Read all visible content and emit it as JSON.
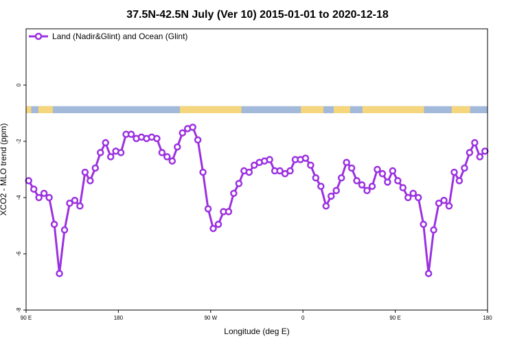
{
  "chart_data": {
    "type": "line",
    "title": "37.5N-42.5N July (Ver 10)   2015-01-01 to 2020-12-18",
    "xlabel": "Longitude (deg E)",
    "ylabel": "XCO2 - MLO trend (ppm)",
    "xlim": [
      90,
      540
    ],
    "ylim": [
      -8,
      2
    ],
    "x_ticks": [
      {
        "value": 90,
        "label": "90 E"
      },
      {
        "value": 180,
        "label": "180"
      },
      {
        "value": 270,
        "label": "90 W"
      },
      {
        "value": 360,
        "label": "0"
      },
      {
        "value": 450,
        "label": "90 E"
      },
      {
        "value": 540,
        "label": "180"
      }
    ],
    "y_ticks": [
      {
        "value": 0,
        "label": "0"
      },
      {
        "value": -2,
        "label": "-2"
      },
      {
        "value": -4,
        "label": "-4"
      },
      {
        "value": -6,
        "label": "-6"
      },
      {
        "value": -8,
        "label": "-8"
      }
    ],
    "grid": false,
    "legend_position": "top-left",
    "land_ocean_strip": {
      "y_range": [
        -1.0,
        -0.75
      ],
      "ocean_color": "#a3b9d9",
      "land_color": "#f6d67c",
      "land_intervals": [
        [
          90,
          95
        ],
        [
          102,
          116
        ],
        [
          240,
          300
        ],
        [
          358,
          380
        ],
        [
          390,
          406
        ],
        [
          418,
          478
        ],
        [
          505,
          523
        ]
      ]
    },
    "series": [
      {
        "name": "Land (Nadir&Glint) and Ocean (Glint)",
        "color": "#9b30e0",
        "x": [
          92.5,
          97.5,
          102.5,
          107.5,
          112.5,
          117.5,
          122.5,
          127.5,
          132.5,
          137.5,
          142.5,
          147.5,
          152.5,
          157.5,
          162.5,
          167.5,
          172.5,
          177.5,
          182.5,
          187.5,
          192.5,
          197.5,
          202.5,
          207.5,
          212.5,
          217.5,
          222.5,
          227.5,
          232.5,
          237.5,
          242.5,
          247.5,
          252.5,
          257.5,
          262.5,
          267.5,
          272.5,
          277.5,
          282.5,
          287.5,
          292.5,
          297.5,
          302.5,
          307.5,
          312.5,
          317.5,
          322.5,
          327.5,
          332.5,
          337.5,
          342.5,
          347.5,
          352.5,
          357.5,
          362.5,
          367.5,
          372.5,
          377.5,
          382.5,
          387.5,
          392.5,
          397.5,
          402.5,
          407.5,
          412.5,
          417.5,
          422.5,
          427.5,
          432.5,
          437.5,
          442.5,
          447.5,
          452.5,
          457.5,
          462.5,
          467.5,
          472.5,
          477.5,
          482.5,
          487.5,
          492.5,
          497.5,
          502.5,
          507.5,
          512.5,
          517.5,
          522.5,
          527.5,
          532.5,
          537.5
        ],
        "values": [
          -3.4,
          -3.7,
          -4.0,
          -3.85,
          -4.0,
          -4.95,
          -6.7,
          -5.15,
          -4.2,
          -4.1,
          -4.3,
          -3.1,
          -3.4,
          -2.95,
          -2.4,
          -2.05,
          -2.55,
          -2.35,
          -2.4,
          -1.75,
          -1.75,
          -1.9,
          -1.85,
          -1.9,
          -1.85,
          -1.9,
          -2.4,
          -2.55,
          -2.7,
          -2.2,
          -1.7,
          -1.55,
          -1.5,
          -1.95,
          -3.1,
          -4.4,
          -5.1,
          -4.95,
          -4.5,
          -4.5,
          -3.85,
          -3.5,
          -3.05,
          -3.1,
          -2.85,
          -2.75,
          -2.7,
          -2.65,
          -3.05,
          -3.05,
          -3.15,
          -3.05,
          -2.65,
          -2.65,
          -2.6,
          -2.85,
          -3.3,
          -3.6,
          -4.3,
          -3.95,
          -3.75,
          -3.3,
          -2.75,
          -2.95,
          -3.4,
          -3.55,
          -3.75,
          -3.6,
          -3.0,
          -3.15,
          -3.45,
          -3.05,
          -3.4,
          -3.65,
          -4.0,
          -3.85,
          -4.0,
          -4.95,
          -6.7,
          -5.15,
          -4.2,
          -4.1,
          -4.3,
          -3.1,
          -3.4,
          -2.95,
          -2.4,
          -2.05,
          -2.55,
          -2.35
        ]
      }
    ]
  }
}
